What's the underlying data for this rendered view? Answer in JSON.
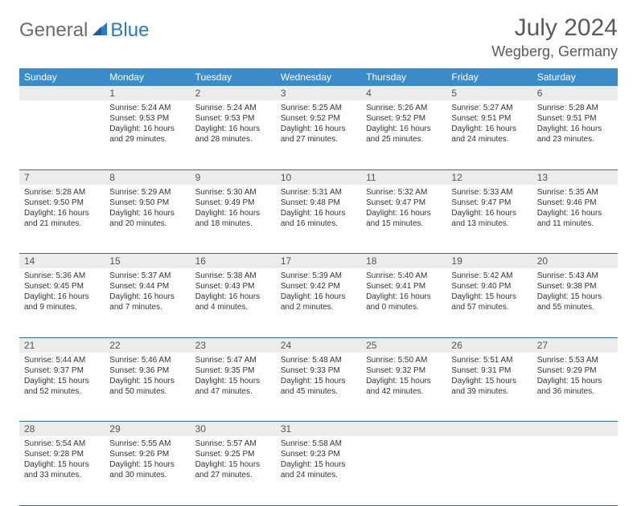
{
  "logo": {
    "part1": "General",
    "part2": "Blue"
  },
  "title": "July 2024",
  "location": "Wegberg, Germany",
  "colors": {
    "header_bg": "#3b8bc9",
    "header_text": "#ffffff",
    "daynum_bg": "#ececec",
    "cell_border": "#3b6ea0",
    "logo_gray": "#6b6b6b",
    "logo_blue": "#2b79c2"
  },
  "weekdays": [
    "Sunday",
    "Monday",
    "Tuesday",
    "Wednesday",
    "Thursday",
    "Friday",
    "Saturday"
  ],
  "first_weekday_index": 1,
  "days": [
    {
      "n": 1,
      "sr": "5:24 AM",
      "ss": "9:53 PM",
      "dl": "16 hours and 29 minutes."
    },
    {
      "n": 2,
      "sr": "5:24 AM",
      "ss": "9:53 PM",
      "dl": "16 hours and 28 minutes."
    },
    {
      "n": 3,
      "sr": "5:25 AM",
      "ss": "9:52 PM",
      "dl": "16 hours and 27 minutes."
    },
    {
      "n": 4,
      "sr": "5:26 AM",
      "ss": "9:52 PM",
      "dl": "16 hours and 25 minutes."
    },
    {
      "n": 5,
      "sr": "5:27 AM",
      "ss": "9:51 PM",
      "dl": "16 hours and 24 minutes."
    },
    {
      "n": 6,
      "sr": "5:28 AM",
      "ss": "9:51 PM",
      "dl": "16 hours and 23 minutes."
    },
    {
      "n": 7,
      "sr": "5:28 AM",
      "ss": "9:50 PM",
      "dl": "16 hours and 21 minutes."
    },
    {
      "n": 8,
      "sr": "5:29 AM",
      "ss": "9:50 PM",
      "dl": "16 hours and 20 minutes."
    },
    {
      "n": 9,
      "sr": "5:30 AM",
      "ss": "9:49 PM",
      "dl": "16 hours and 18 minutes."
    },
    {
      "n": 10,
      "sr": "5:31 AM",
      "ss": "9:48 PM",
      "dl": "16 hours and 16 minutes."
    },
    {
      "n": 11,
      "sr": "5:32 AM",
      "ss": "9:47 PM",
      "dl": "16 hours and 15 minutes."
    },
    {
      "n": 12,
      "sr": "5:33 AM",
      "ss": "9:47 PM",
      "dl": "16 hours and 13 minutes."
    },
    {
      "n": 13,
      "sr": "5:35 AM",
      "ss": "9:46 PM",
      "dl": "16 hours and 11 minutes."
    },
    {
      "n": 14,
      "sr": "5:36 AM",
      "ss": "9:45 PM",
      "dl": "16 hours and 9 minutes."
    },
    {
      "n": 15,
      "sr": "5:37 AM",
      "ss": "9:44 PM",
      "dl": "16 hours and 7 minutes."
    },
    {
      "n": 16,
      "sr": "5:38 AM",
      "ss": "9:43 PM",
      "dl": "16 hours and 4 minutes."
    },
    {
      "n": 17,
      "sr": "5:39 AM",
      "ss": "9:42 PM",
      "dl": "16 hours and 2 minutes."
    },
    {
      "n": 18,
      "sr": "5:40 AM",
      "ss": "9:41 PM",
      "dl": "16 hours and 0 minutes."
    },
    {
      "n": 19,
      "sr": "5:42 AM",
      "ss": "9:40 PM",
      "dl": "15 hours and 57 minutes."
    },
    {
      "n": 20,
      "sr": "5:43 AM",
      "ss": "9:38 PM",
      "dl": "15 hours and 55 minutes."
    },
    {
      "n": 21,
      "sr": "5:44 AM",
      "ss": "9:37 PM",
      "dl": "15 hours and 52 minutes."
    },
    {
      "n": 22,
      "sr": "5:46 AM",
      "ss": "9:36 PM",
      "dl": "15 hours and 50 minutes."
    },
    {
      "n": 23,
      "sr": "5:47 AM",
      "ss": "9:35 PM",
      "dl": "15 hours and 47 minutes."
    },
    {
      "n": 24,
      "sr": "5:48 AM",
      "ss": "9:33 PM",
      "dl": "15 hours and 45 minutes."
    },
    {
      "n": 25,
      "sr": "5:50 AM",
      "ss": "9:32 PM",
      "dl": "15 hours and 42 minutes."
    },
    {
      "n": 26,
      "sr": "5:51 AM",
      "ss": "9:31 PM",
      "dl": "15 hours and 39 minutes."
    },
    {
      "n": 27,
      "sr": "5:53 AM",
      "ss": "9:29 PM",
      "dl": "15 hours and 36 minutes."
    },
    {
      "n": 28,
      "sr": "5:54 AM",
      "ss": "9:28 PM",
      "dl": "15 hours and 33 minutes."
    },
    {
      "n": 29,
      "sr": "5:55 AM",
      "ss": "9:26 PM",
      "dl": "15 hours and 30 minutes."
    },
    {
      "n": 30,
      "sr": "5:57 AM",
      "ss": "9:25 PM",
      "dl": "15 hours and 27 minutes."
    },
    {
      "n": 31,
      "sr": "5:58 AM",
      "ss": "9:23 PM",
      "dl": "15 hours and 24 minutes."
    }
  ],
  "labels": {
    "sunrise": "Sunrise:",
    "sunset": "Sunset:",
    "daylight": "Daylight:"
  }
}
